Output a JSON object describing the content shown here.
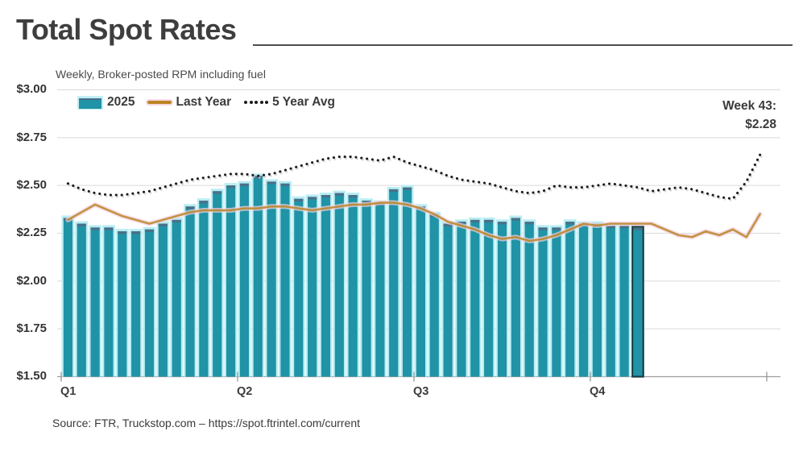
{
  "header": {
    "title": "Total Spot Rates",
    "subtitle": "Weekly, Broker-posted RPM including fuel"
  },
  "legend": [
    {
      "label": "2025",
      "type": "bar",
      "color": "#2093a6"
    },
    {
      "label": "Last Year",
      "type": "line",
      "color": "#bb8526"
    },
    {
      "label": "5 Year Avg",
      "type": "dotted-line",
      "color": "#1c1c1c"
    }
  ],
  "annotation": {
    "line1": "Week 43:",
    "line2": "$2.28"
  },
  "source": "Source: FTR, Truckstop.com – https://spot.ftrintel.com/current",
  "chart_data": {
    "type": "bar",
    "title": "Total Spot Rates",
    "subtitle": "Weekly, Broker-posted RPM including fuel",
    "x_unit": "week of year",
    "ylim": [
      1.5,
      3.0
    ],
    "grid": true,
    "legend_position": "top-left",
    "y_axis": {
      "min": 1.5,
      "max": 3.0,
      "ticks": [
        {
          "label": "$3.00",
          "value": 3.0
        },
        {
          "label": "$2.75",
          "value": 2.75
        },
        {
          "label": "$2.50",
          "value": 2.5
        },
        {
          "label": "$2.25",
          "value": 2.25
        },
        {
          "label": "$2.00",
          "value": 2.0
        },
        {
          "label": "$1.75",
          "value": 1.75
        },
        {
          "label": "$1.50",
          "value": 1.5
        }
      ]
    },
    "x_axis": {
      "end_week": 52,
      "quarters": [
        {
          "label": "Q1",
          "week": 0
        },
        {
          "label": "Q2",
          "week": 13
        },
        {
          "label": "Q3",
          "week": 26
        },
        {
          "label": "Q4",
          "week": 39
        }
      ]
    },
    "series": [
      {
        "name": "2025",
        "type": "bar",
        "color": "#2093a6",
        "halo": "#b9edf3",
        "cap": "#4b7089",
        "values": [
          2.33,
          2.3,
          2.28,
          2.28,
          2.26,
          2.26,
          2.27,
          2.3,
          2.32,
          2.39,
          2.42,
          2.47,
          2.5,
          2.51,
          2.55,
          2.52,
          2.51,
          2.43,
          2.44,
          2.45,
          2.46,
          2.45,
          2.42,
          2.41,
          2.48,
          2.49,
          2.39,
          2.35,
          2.3,
          2.31,
          2.32,
          2.32,
          2.31,
          2.33,
          2.31,
          2.28,
          2.28,
          2.31,
          2.3,
          2.3,
          2.29,
          2.29,
          2.28
        ]
      },
      {
        "name": "Last Year",
        "type": "line",
        "color": "#bb8526",
        "halo": "#f3d3e2",
        "values": [
          2.32,
          2.36,
          2.4,
          2.37,
          2.34,
          2.32,
          2.3,
          2.32,
          2.34,
          2.36,
          2.37,
          2.37,
          2.37,
          2.38,
          2.38,
          2.39,
          2.39,
          2.38,
          2.37,
          2.38,
          2.39,
          2.4,
          2.4,
          2.41,
          2.41,
          2.4,
          2.38,
          2.35,
          2.31,
          2.29,
          2.27,
          2.24,
          2.22,
          2.23,
          2.21,
          2.22,
          2.24,
          2.27,
          2.3,
          2.29,
          2.3,
          2.3,
          2.3,
          2.3,
          2.27,
          2.24,
          2.23,
          2.26,
          2.24,
          2.27,
          2.23,
          2.35
        ]
      },
      {
        "name": "5 Year Avg",
        "type": "dotted-line",
        "color": "#1c1c1c",
        "values": [
          2.51,
          2.48,
          2.46,
          2.45,
          2.45,
          2.46,
          2.47,
          2.49,
          2.51,
          2.53,
          2.54,
          2.55,
          2.56,
          2.56,
          2.55,
          2.56,
          2.58,
          2.6,
          2.62,
          2.64,
          2.65,
          2.65,
          2.64,
          2.63,
          2.65,
          2.62,
          2.6,
          2.58,
          2.55,
          2.53,
          2.52,
          2.51,
          2.49,
          2.47,
          2.46,
          2.47,
          2.5,
          2.49,
          2.49,
          2.5,
          2.51,
          2.5,
          2.49,
          2.47,
          2.48,
          2.49,
          2.48,
          2.46,
          2.44,
          2.43,
          2.52,
          2.66
        ]
      }
    ],
    "highlight": {
      "week": 43,
      "value": 2.28,
      "label": "Week 43: $2.28"
    }
  }
}
